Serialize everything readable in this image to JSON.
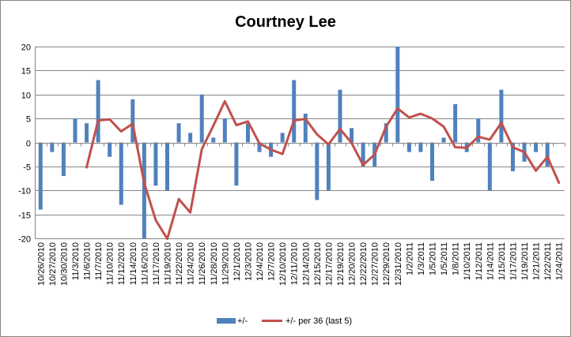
{
  "chart_data": {
    "type": "bar",
    "title": "Courtney Lee",
    "xlabel": "",
    "ylabel": "",
    "ylim": [
      -20,
      20
    ],
    "yticks": [
      -20,
      -15,
      -10,
      -5,
      0,
      5,
      10,
      15,
      20
    ],
    "grid": "horizontal",
    "legend_position": "bottom",
    "categories": [
      "10/26/2010",
      "10/27/2010",
      "10/30/2010",
      "11/3/2010",
      "11/6/2010",
      "11/7/2010",
      "11/10/2010",
      "11/12/2010",
      "11/14/2010",
      "11/16/2010",
      "11/17/2010",
      "11/19/2010",
      "11/22/2010",
      "11/24/2010",
      "11/26/2010",
      "11/28/2010",
      "11/29/2010",
      "12/1/2010",
      "12/3/2010",
      "12/4/2010",
      "12/7/2010",
      "12/10/2010",
      "12/11/2010",
      "12/14/2010",
      "12/15/2010",
      "12/17/2010",
      "12/19/2010",
      "12/20/2010",
      "12/22/2010",
      "12/27/2010",
      "12/29/2010",
      "12/31/2010",
      "1/2/2011",
      "1/3/2011",
      "1/5/2011",
      "1/5/2011",
      "1/8/2011",
      "1/10/2011",
      "1/12/2011",
      "1/14/2011",
      "1/15/2011",
      "1/17/2011",
      "1/19/2011",
      "1/21/2011",
      "1/22/2011",
      "1/24/2011"
    ],
    "series": [
      {
        "name": "+/-",
        "kind": "bar",
        "color": "#4F81BD",
        "values": [
          -14,
          -2,
          -7,
          5,
          4,
          13,
          -3,
          -13,
          9,
          -20,
          -9,
          -10,
          4,
          2,
          10,
          1,
          5,
          -9,
          4,
          -2,
          -3,
          2,
          13,
          6,
          -12,
          -10,
          11,
          3,
          -5,
          -5,
          4,
          20,
          -2,
          -2,
          -8,
          1,
          8,
          -2,
          5,
          -10,
          11,
          -6,
          -4,
          -2,
          -5,
          0
        ]
      },
      {
        "name": "+/- per 36 (last 5)",
        "kind": "line",
        "color": "#C0504D",
        "values": [
          null,
          null,
          null,
          null,
          -5.2,
          4.6,
          4.8,
          2.3,
          3.9,
          -8.5,
          -16.2,
          -20.1,
          -11.8,
          -14.6,
          -1.4,
          3.5,
          8.6,
          3.6,
          4.4,
          -0.2,
          -1.5,
          -2.4,
          4.6,
          4.9,
          1.7,
          -0.4,
          2.8,
          -0.1,
          -4.7,
          -2.5,
          3.3,
          7.1,
          5.2,
          6.0,
          5.0,
          3.3,
          -1.0,
          -1.1,
          1.2,
          0.6,
          4.1,
          -1.0,
          -2.0,
          -5.9,
          -3.0,
          -8.4
        ]
      }
    ]
  }
}
